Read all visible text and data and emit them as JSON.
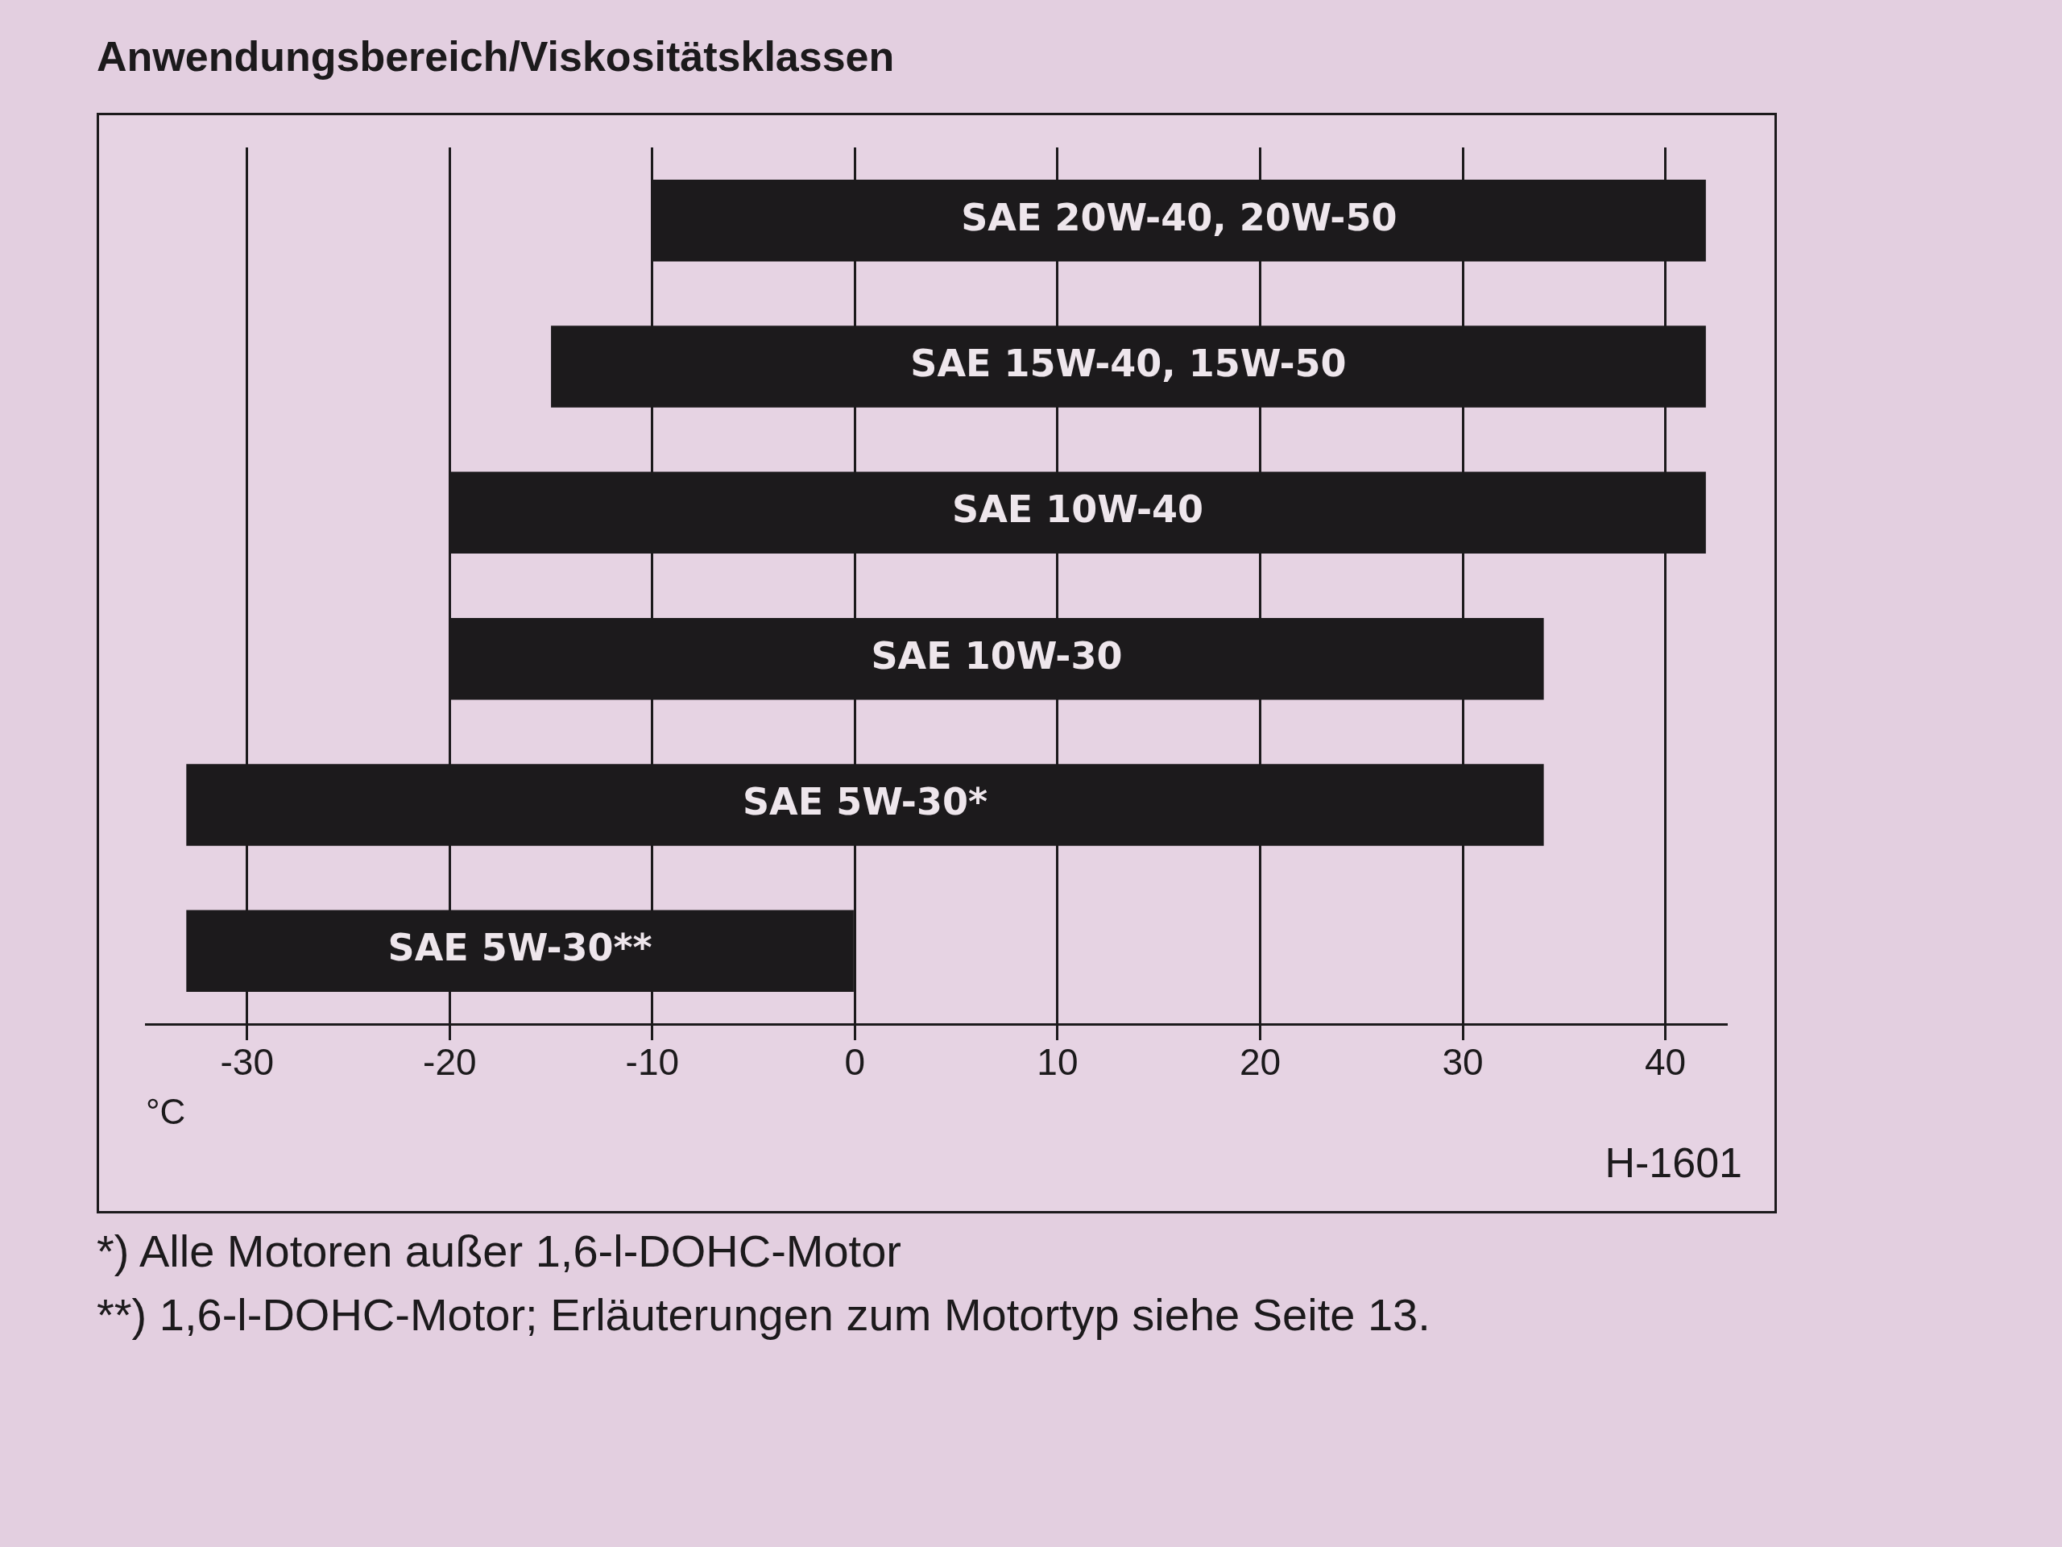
{
  "chart_data": {
    "type": "bar",
    "orientation": "horizontal",
    "title": "Anwendungsbereich/Viskositätsklassen",
    "xlabel": "°C",
    "categories": [
      "SAE 20W-40, 20W-50",
      "SAE 15W-40, 15W-50",
      "SAE 10W-40",
      "SAE 10W-30",
      "SAE 5W-30*",
      "SAE 5W-30**"
    ],
    "base": [
      -10,
      -15,
      -20,
      -20,
      -33,
      -33
    ],
    "values": [
      52,
      57,
      62,
      54,
      67,
      33
    ],
    "color": "#1c1a1c",
    "xlim": [
      -35,
      43
    ],
    "xticks": [
      -30,
      -20,
      -10,
      0,
      10,
      20,
      30,
      40
    ],
    "grid": "x",
    "tick_labels": "x",
    "annotations": [
      "H-1601",
      "*) Alle Motoren außer 1,6-l-DOHC-Motor",
      "**) 1,6-l-DOHC-Motor; Erläuterungen zum Motortyp siehe Seite 13."
    ]
  }
}
